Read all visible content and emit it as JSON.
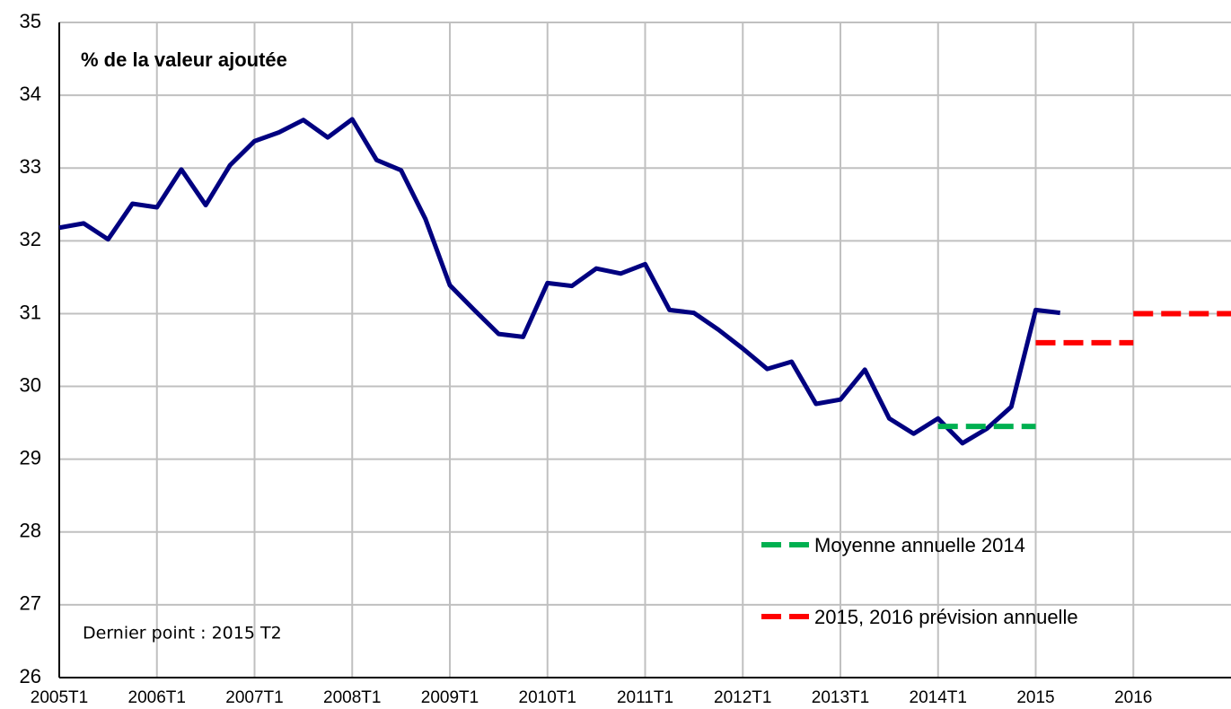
{
  "chart_data": {
    "type": "line",
    "annotations": [
      "% de la valeur ajoutée",
      "Dernier point : 2015 T2"
    ],
    "xlim": [
      2005,
      2017
    ],
    "xticks": [
      {
        "value": 2005,
        "label": "2005T1"
      },
      {
        "value": 2006,
        "label": "2006T1"
      },
      {
        "value": 2007,
        "label": "2007T1"
      },
      {
        "value": 2008,
        "label": "2008T1"
      },
      {
        "value": 2009,
        "label": "2009T1"
      },
      {
        "value": 2010,
        "label": "2010T1"
      },
      {
        "value": 2011,
        "label": "2011T1"
      },
      {
        "value": 2012,
        "label": "2012T1"
      },
      {
        "value": 2013,
        "label": "2013T1"
      },
      {
        "value": 2014,
        "label": "2014T1"
      },
      2015,
      2016
    ],
    "ylim": [
      26,
      35
    ],
    "yticks": [
      26,
      27,
      28,
      29,
      30,
      31,
      32,
      33,
      34,
      35
    ],
    "grid": true,
    "series": [
      {
        "color": "#000080",
        "dash": false,
        "x": [
          2005,
          2005.25,
          2005.5,
          2005.75,
          2006,
          2006.25,
          2006.5,
          2006.75,
          2007,
          2007.25,
          2007.5,
          2007.75,
          2008,
          2008.25,
          2008.5,
          2008.75,
          2009,
          2009.25,
          2009.5,
          2009.75,
          2010,
          2010.25,
          2010.5,
          2010.75,
          2011,
          2011.25,
          2011.5,
          2011.75,
          2012,
          2012.25,
          2012.5,
          2012.75,
          2013,
          2013.25,
          2013.5,
          2013.75,
          2014,
          2014.25,
          2014.5,
          2014.75,
          2015,
          2015.25
        ],
        "values": [
          32.18,
          32.24,
          32.02,
          32.51,
          32.46,
          32.98,
          32.49,
          33.04,
          33.37,
          33.49,
          33.66,
          33.42,
          33.67,
          33.11,
          32.97,
          32.3,
          31.39,
          31.05,
          30.72,
          30.68,
          31.42,
          31.38,
          31.62,
          31.55,
          31.68,
          31.05,
          31.01,
          30.78,
          30.52,
          30.24,
          30.34,
          29.76,
          29.82,
          30.23,
          29.56,
          29.35,
          29.56,
          29.22,
          29.42,
          29.72,
          31.05,
          31.01
        ]
      },
      {
        "name": "Moyenne annuelle 2014",
        "color": "#00b050",
        "dash": true,
        "x": [
          2014,
          2015
        ],
        "values": [
          29.45,
          29.45
        ]
      },
      {
        "name": "2015, 2016 prévision annuelle",
        "color": "#ff0000",
        "dash": true,
        "x": [
          2015,
          2016,
          2016,
          2016,
          2017
        ],
        "values": [
          30.6,
          30.6,
          null,
          31.0,
          31.0
        ]
      }
    ]
  }
}
